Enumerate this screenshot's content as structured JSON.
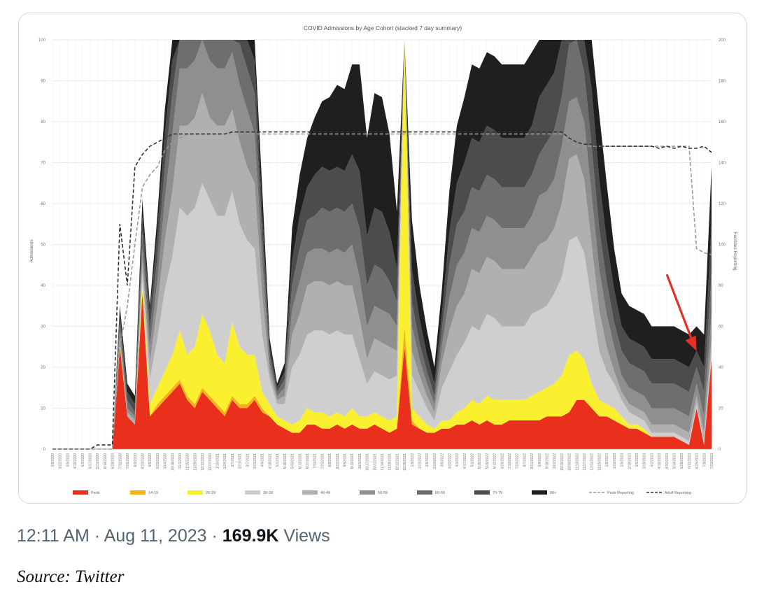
{
  "tweet": {
    "time": "12:11 AM",
    "separator": "·",
    "date": "Aug 11, 2023",
    "views_count": "169.9K",
    "views_label": "Views"
  },
  "source": "Source: Twitter",
  "chart_data": {
    "type": "area",
    "stacked": true,
    "title": "COVID Admissions by Age Cohort (stacked 7 day summary)",
    "ylabel": "Admissions",
    "y2label": "Facilities Reporting",
    "ylim": [
      0,
      100
    ],
    "y2lim": [
      0,
      200
    ],
    "yticks": [
      0,
      10,
      20,
      30,
      40,
      50,
      60,
      70,
      80,
      90,
      100
    ],
    "y2ticks": [
      0,
      20,
      40,
      60,
      80,
      100,
      120,
      140,
      160,
      180,
      200
    ],
    "grid": true,
    "legend_position": "bottom",
    "x": [
      "3/8/2020",
      "3/22/2020",
      "4/5/2020",
      "4/19/2020",
      "5/3/2020",
      "5/17/2020",
      "5/31/2020",
      "6/14/2020",
      "6/28/2020",
      "7/12/2020",
      "7/26/2020",
      "8/9/2020",
      "8/23/2020",
      "9/6/2020",
      "9/20/2020",
      "10/4/2020",
      "10/18/2020",
      "11/1/2020",
      "11/15/2020",
      "11/29/2020",
      "12/13/2020",
      "12/27/2020",
      "1/10/2021",
      "1/24/2021",
      "2/7/2021",
      "2/21/2021",
      "3/7/2021",
      "3/21/2021",
      "4/4/2021",
      "4/18/2021",
      "5/2/2021",
      "5/16/2021",
      "5/30/2021",
      "6/13/2021",
      "6/27/2021",
      "7/11/2021",
      "7/25/2021",
      "8/8/2021",
      "8/22/2021",
      "9/5/2021",
      "9/19/2021",
      "10/3/2021",
      "10/17/2021",
      "10/31/2021",
      "11/14/2021",
      "11/28/2021",
      "12/12/2021",
      "12/26/2021",
      "1/9/2022",
      "1/23/2022",
      "2/6/2022",
      "2/20/2022",
      "3/6/2022",
      "3/20/2022",
      "4/3/2022",
      "4/17/2022",
      "5/1/2022",
      "5/15/2022",
      "5/29/2022",
      "6/12/2022",
      "6/26/2022",
      "7/10/2022",
      "7/24/2022",
      "8/7/2022",
      "8/21/2022",
      "9/4/2022",
      "9/18/2022",
      "10/2/2022",
      "10/16/2022",
      "10/30/2022",
      "11/13/2022",
      "11/27/2022",
      "12/11/2022",
      "12/25/2022",
      "1/8/2023",
      "1/22/2023",
      "2/5/2023",
      "2/19/2023",
      "3/5/2023",
      "3/19/2023",
      "4/2/2023",
      "4/16/2023",
      "4/30/2023",
      "5/14/2023",
      "5/28/2023",
      "6/11/2023",
      "6/25/2023",
      "7/9/2023",
      "7/23/2023"
    ],
    "series": [
      {
        "name": "Peds",
        "color": "#e8301c",
        "values": [
          0,
          0,
          0,
          0,
          0,
          0,
          0,
          0,
          0,
          25,
          8,
          6,
          38,
          8,
          10,
          12,
          14,
          16,
          12,
          10,
          14,
          12,
          10,
          8,
          12,
          10,
          10,
          12,
          9,
          8,
          6,
          5,
          4,
          4,
          6,
          6,
          5,
          5,
          6,
          5,
          6,
          5,
          5,
          6,
          5,
          4,
          5,
          25,
          6,
          5,
          4,
          4,
          5,
          5,
          6,
          6,
          7,
          6,
          7,
          6,
          6,
          7,
          7,
          7,
          7,
          7,
          8,
          8,
          8,
          9,
          12,
          12,
          10,
          8,
          8,
          7,
          6,
          5,
          5,
          4,
          3,
          3,
          3,
          3,
          2,
          1,
          10,
          1,
          22
        ]
      },
      {
        "name": "14-19",
        "color": "#f6b21a",
        "values": [
          0,
          0,
          0,
          0,
          0,
          0,
          0,
          0,
          0,
          1,
          0,
          0,
          1,
          0,
          1,
          1,
          1,
          1,
          1,
          1,
          1,
          1,
          1,
          1,
          1,
          1,
          1,
          1,
          1,
          0,
          0,
          0,
          0,
          0,
          0,
          0,
          0,
          0,
          0,
          0,
          0,
          0,
          0,
          0,
          0,
          0,
          0,
          5,
          1,
          0,
          0,
          0,
          0,
          0,
          0,
          0,
          0,
          0,
          0,
          0,
          0,
          0,
          0,
          0,
          0,
          0,
          0,
          0,
          0,
          0,
          0,
          0,
          0,
          0,
          0,
          0,
          0,
          0,
          0,
          0,
          0,
          0,
          0,
          0,
          0,
          0,
          0,
          0,
          0
        ]
      },
      {
        "name": "20-29",
        "color": "#faf030",
        "values": [
          0,
          0,
          0,
          0,
          0,
          0,
          0,
          0,
          0,
          0,
          0,
          0,
          2,
          3,
          4,
          6,
          8,
          12,
          10,
          14,
          18,
          16,
          12,
          12,
          18,
          14,
          12,
          10,
          4,
          3,
          2,
          2,
          2,
          3,
          4,
          3,
          4,
          3,
          3,
          3,
          4,
          3,
          3,
          3,
          3,
          3,
          3,
          70,
          3,
          3,
          2,
          1,
          2,
          2,
          3,
          4,
          5,
          5,
          6,
          6,
          6,
          5,
          5,
          5,
          6,
          7,
          7,
          8,
          10,
          14,
          12,
          10,
          6,
          4,
          3,
          3,
          2,
          1,
          1,
          1,
          0,
          0,
          0,
          0,
          0,
          0,
          0,
          0,
          0
        ]
      },
      {
        "name": "30-39",
        "color": "#cfcfcf",
        "values": [
          0,
          0,
          0,
          0,
          0,
          0,
          0,
          0,
          0,
          0,
          0,
          0,
          2,
          6,
          12,
          20,
          24,
          30,
          34,
          34,
          32,
          32,
          34,
          36,
          32,
          30,
          28,
          26,
          14,
          6,
          3,
          4,
          14,
          16,
          18,
          20,
          20,
          20,
          20,
          20,
          18,
          14,
          8,
          10,
          10,
          10,
          10,
          0,
          8,
          6,
          4,
          2,
          8,
          12,
          14,
          16,
          18,
          18,
          20,
          20,
          18,
          18,
          18,
          18,
          20,
          20,
          20,
          22,
          24,
          28,
          28,
          26,
          20,
          12,
          8,
          6,
          4,
          3,
          2,
          2,
          1,
          1,
          1,
          1,
          1,
          1,
          1,
          1,
          2
        ]
      },
      {
        "name": "40-49",
        "color": "#b0b0b0",
        "values": [
          0,
          0,
          0,
          0,
          0,
          0,
          0,
          0,
          0,
          1,
          1,
          1,
          3,
          4,
          8,
          12,
          16,
          20,
          22,
          22,
          22,
          20,
          22,
          22,
          20,
          20,
          18,
          16,
          10,
          2,
          1,
          2,
          8,
          10,
          12,
          12,
          12,
          12,
          12,
          12,
          12,
          10,
          6,
          8,
          8,
          8,
          6,
          0,
          6,
          4,
          3,
          2,
          6,
          10,
          12,
          12,
          14,
          14,
          14,
          14,
          14,
          14,
          14,
          14,
          14,
          16,
          16,
          16,
          18,
          20,
          20,
          18,
          14,
          10,
          6,
          3,
          2,
          2,
          2,
          2,
          2,
          2,
          2,
          2,
          2,
          2,
          2,
          2,
          3
        ]
      },
      {
        "name": "50-59",
        "color": "#8f8f8f",
        "values": [
          0,
          0,
          0,
          0,
          0,
          0,
          0,
          0,
          0,
          2,
          1,
          1,
          3,
          4,
          6,
          10,
          14,
          14,
          14,
          14,
          14,
          14,
          14,
          14,
          14,
          14,
          14,
          12,
          8,
          2,
          1,
          2,
          6,
          8,
          8,
          8,
          8,
          8,
          8,
          8,
          10,
          10,
          8,
          8,
          8,
          8,
          6,
          0,
          6,
          4,
          3,
          2,
          4,
          8,
          10,
          10,
          10,
          10,
          10,
          10,
          10,
          10,
          10,
          10,
          10,
          12,
          12,
          12,
          14,
          14,
          14,
          14,
          12,
          10,
          8,
          6,
          4,
          4,
          4,
          4,
          4,
          4,
          4,
          4,
          4,
          4,
          3,
          4,
          6
        ]
      },
      {
        "name": "60-69",
        "color": "#6e6e6e",
        "values": [
          0,
          0,
          0,
          0,
          0,
          0,
          0,
          0,
          0,
          2,
          2,
          1,
          4,
          4,
          6,
          8,
          10,
          10,
          10,
          10,
          10,
          10,
          10,
          10,
          10,
          10,
          10,
          10,
          6,
          2,
          1,
          2,
          6,
          8,
          8,
          8,
          10,
          10,
          10,
          10,
          10,
          12,
          10,
          10,
          10,
          8,
          6,
          0,
          6,
          4,
          3,
          2,
          4,
          8,
          10,
          10,
          10,
          10,
          10,
          10,
          10,
          10,
          10,
          10,
          10,
          10,
          12,
          12,
          12,
          14,
          14,
          12,
          12,
          10,
          8,
          6,
          6,
          6,
          6,
          6,
          6,
          6,
          6,
          6,
          6,
          6,
          4,
          6,
          10
        ]
      },
      {
        "name": "70-79",
        "color": "#4c4c4c",
        "values": [
          0,
          0,
          0,
          0,
          0,
          0,
          0,
          0,
          0,
          2,
          2,
          2,
          4,
          4,
          6,
          8,
          8,
          8,
          8,
          8,
          8,
          8,
          8,
          8,
          8,
          8,
          8,
          8,
          6,
          2,
          1,
          2,
          6,
          8,
          8,
          10,
          10,
          10,
          10,
          10,
          12,
          14,
          12,
          14,
          14,
          12,
          8,
          0,
          8,
          6,
          4,
          3,
          4,
          8,
          10,
          12,
          12,
          12,
          12,
          12,
          12,
          12,
          12,
          12,
          12,
          14,
          14,
          14,
          16,
          16,
          16,
          14,
          14,
          12,
          10,
          8,
          6,
          6,
          6,
          6,
          6,
          6,
          6,
          6,
          6,
          6,
          4,
          6,
          12
        ]
      },
      {
        "name": "80+",
        "color": "#1f1f1f",
        "values": [
          0,
          0,
          0,
          0,
          0,
          0,
          0,
          0,
          0,
          2,
          2,
          2,
          4,
          2,
          4,
          6,
          6,
          6,
          6,
          6,
          6,
          6,
          6,
          6,
          6,
          6,
          6,
          6,
          6,
          2,
          1,
          2,
          8,
          10,
          12,
          14,
          16,
          18,
          20,
          20,
          22,
          26,
          24,
          28,
          28,
          24,
          14,
          0,
          12,
          8,
          6,
          4,
          6,
          10,
          14,
          16,
          18,
          18,
          18,
          18,
          18,
          18,
          18,
          18,
          18,
          20,
          20,
          20,
          22,
          22,
          22,
          20,
          18,
          16,
          14,
          10,
          8,
          8,
          8,
          8,
          8,
          8,
          8,
          8,
          8,
          8,
          6,
          8,
          14
        ]
      },
      {
        "name": "Peds Reporting",
        "axis": "right",
        "dash": "dashed",
        "color": "#9a9a9a",
        "values": [
          0,
          0,
          0,
          0,
          0,
          0,
          0,
          0,
          0,
          50,
          70,
          100,
          128,
          134,
          138,
          146,
          150,
          152,
          154,
          154,
          154,
          154,
          154,
          154,
          154,
          154,
          154,
          154,
          154,
          154,
          154,
          154,
          154,
          154,
          154,
          154,
          154,
          154,
          154,
          154,
          154,
          154,
          154,
          154,
          154,
          154,
          154,
          154,
          154,
          154,
          154,
          154,
          154,
          154,
          154,
          154,
          154,
          154,
          154,
          154,
          154,
          154,
          154,
          154,
          154,
          154,
          154,
          154,
          154,
          150,
          148,
          148,
          148,
          148,
          148,
          148,
          148,
          148,
          148,
          148,
          148,
          148,
          148,
          148,
          148,
          148,
          98,
          96,
          95
        ]
      },
      {
        "name": "Adult Reporting",
        "axis": "right",
        "dash": "dashed",
        "color": "#333333",
        "values": [
          0,
          0,
          0,
          0,
          0,
          0,
          2,
          2,
          2,
          110,
          80,
          138,
          144,
          148,
          150,
          152,
          154,
          154,
          154,
          154,
          154,
          154,
          154,
          154,
          155,
          155,
          155,
          155,
          155,
          155,
          155,
          155,
          155,
          155,
          155,
          155,
          155,
          155,
          155,
          155,
          155,
          155,
          155,
          155,
          155,
          155,
          155,
          155,
          155,
          155,
          155,
          155,
          155,
          155,
          155,
          155,
          155,
          155,
          155,
          155,
          155,
          155,
          155,
          155,
          155,
          155,
          155,
          155,
          155,
          152,
          150,
          149,
          149,
          148,
          148,
          148,
          148,
          148,
          148,
          148,
          148,
          147,
          148,
          147,
          148,
          147,
          147,
          148,
          145
        ]
      }
    ],
    "annotations": [
      {
        "type": "arrow",
        "color": "#e03228",
        "points_to_x": "6/25/2023",
        "points_to_y": 24
      }
    ]
  }
}
